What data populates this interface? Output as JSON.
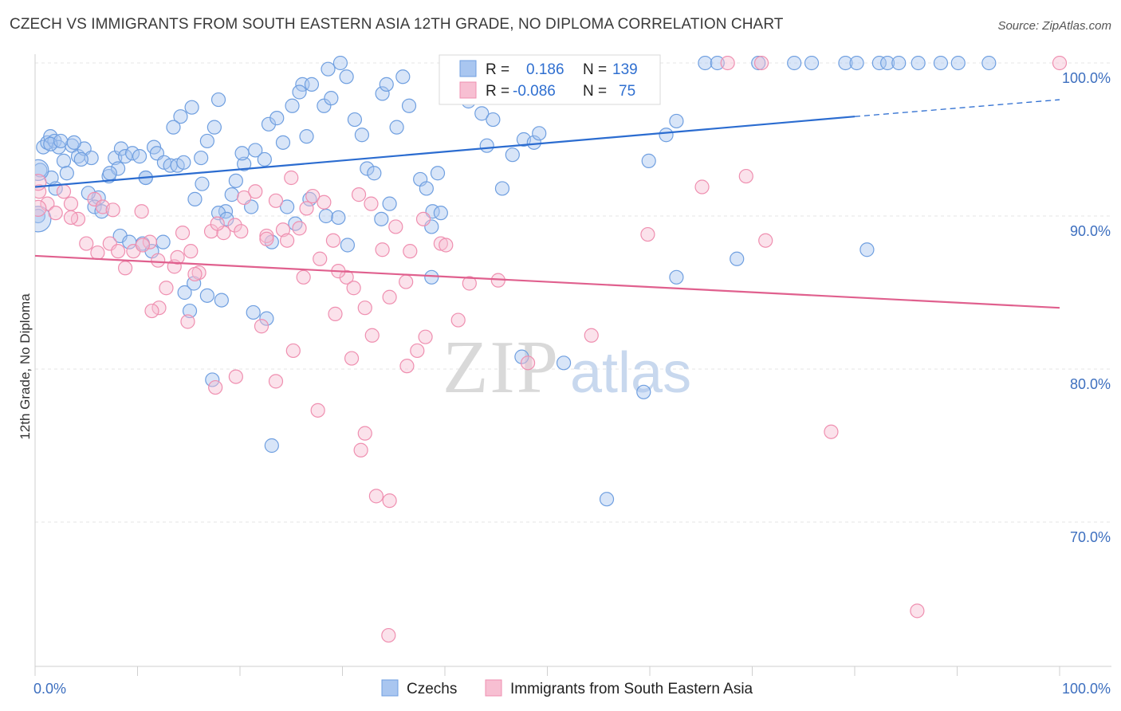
{
  "title": "CZECH VS IMMIGRANTS FROM SOUTH EASTERN ASIA 12TH GRADE, NO DIPLOMA CORRELATION CHART",
  "source": "Source: ZipAtlas.com",
  "watermark": {
    "zip": "ZIP",
    "atlas": "atlas"
  },
  "chart_data": {
    "type": "scatter",
    "xlabel": "",
    "ylabel": "12th Grade, No Diploma",
    "xlim": [
      0,
      100
    ],
    "ylim": [
      60,
      100
    ],
    "x_tick_labels": [
      {
        "value": 0,
        "label": "0.0%"
      },
      {
        "value": 100,
        "label": "100.0%"
      }
    ],
    "y_tick_labels": [
      {
        "value": 100,
        "label": "100.0%"
      },
      {
        "value": 90,
        "label": "90.0%"
      },
      {
        "value": 80,
        "label": "80.0%"
      },
      {
        "value": 70,
        "label": "70.0%"
      }
    ],
    "grid": true,
    "legend_position": "top-center",
    "series": [
      {
        "name": "Czechs",
        "color": "#6f9fe0",
        "fill": "#a9c6f0",
        "line_color": "#2b6cd0",
        "R_label": "R =",
        "R": "0.186",
        "N_label": "N =",
        "N": "139",
        "trend": {
          "x0": 0,
          "y0": 91.9,
          "x1": 80,
          "y1": 96.5,
          "dash_to_x": 100,
          "dash_to_y": 97.6
        },
        "points": [
          [
            0.5,
            93
          ],
          [
            0.3,
            90
          ],
          [
            0.8,
            94.5
          ],
          [
            1.2,
            94.8
          ],
          [
            1.5,
            95.2
          ],
          [
            1.9,
            94.9
          ],
          [
            2.3,
            94.5
          ],
          [
            2.8,
            93.6
          ],
          [
            3.1,
            92.8
          ],
          [
            3.6,
            94.6
          ],
          [
            4.2,
            93.9
          ],
          [
            4.8,
            94.4
          ],
          [
            5.5,
            93.8
          ],
          [
            6.2,
            91.2
          ],
          [
            1.5,
            94.7
          ],
          [
            2.5,
            94.9
          ],
          [
            3.8,
            94.8
          ],
          [
            4.5,
            93.7
          ],
          [
            5.2,
            91.5
          ],
          [
            5.8,
            90.6
          ],
          [
            6.5,
            90.3
          ],
          [
            7.2,
            92.6
          ],
          [
            7.8,
            93.8
          ],
          [
            8.4,
            94.4
          ],
          [
            8.8,
            93.9
          ],
          [
            9.5,
            94.1
          ],
          [
            10.2,
            93.9
          ],
          [
            10.8,
            92.5
          ],
          [
            11.6,
            94.5
          ],
          [
            11.9,
            94.1
          ],
          [
            12.6,
            93.5
          ],
          [
            13.2,
            93.3
          ],
          [
            13.9,
            93.3
          ],
          [
            14.5,
            93.5
          ],
          [
            10.8,
            92.5
          ],
          [
            8.1,
            93.1
          ],
          [
            7.3,
            92.8
          ],
          [
            14.2,
            96.5
          ],
          [
            13.5,
            95.8
          ],
          [
            15.3,
            97.1
          ],
          [
            16.2,
            93.8
          ],
          [
            16.8,
            94.9
          ],
          [
            17.5,
            95.8
          ],
          [
            17.9,
            97.6
          ],
          [
            18.6,
            90.3
          ],
          [
            19.2,
            91.4
          ],
          [
            19.6,
            92.3
          ],
          [
            20.4,
            93.4
          ],
          [
            20.2,
            94.1
          ],
          [
            21.5,
            94.3
          ],
          [
            22.4,
            93.7
          ],
          [
            22.8,
            96.0
          ],
          [
            23.6,
            96.4
          ],
          [
            24.2,
            94.8
          ],
          [
            25.1,
            97.2
          ],
          [
            26.1,
            98.6
          ],
          [
            25.8,
            98.1
          ],
          [
            27.0,
            98.6
          ],
          [
            26.5,
            95.2
          ],
          [
            28.2,
            97.2
          ],
          [
            28.9,
            97.7
          ],
          [
            28.6,
            99.6
          ],
          [
            29.8,
            100
          ],
          [
            30.4,
            99.1
          ],
          [
            31.2,
            96.3
          ],
          [
            31.9,
            95.3
          ],
          [
            32.4,
            93.1
          ],
          [
            33.1,
            92.8
          ],
          [
            33.9,
            98.0
          ],
          [
            34.3,
            98.6
          ],
          [
            35.3,
            95.8
          ],
          [
            35.9,
            99.1
          ],
          [
            36.5,
            97.2
          ],
          [
            37.6,
            92.4
          ],
          [
            38.2,
            91.8
          ],
          [
            38.8,
            90.3
          ],
          [
            39.3,
            92.8
          ],
          [
            40.6,
            100
          ],
          [
            41.6,
            98.2
          ],
          [
            42.3,
            97.5
          ],
          [
            43.6,
            96.7
          ],
          [
            44.1,
            94.6
          ],
          [
            44.7,
            96.3
          ],
          [
            45.6,
            91.8
          ],
          [
            46.6,
            94.0
          ],
          [
            47.7,
            95.0
          ],
          [
            48.7,
            94.8
          ],
          [
            49.2,
            95.4
          ],
          [
            50.6,
            100
          ],
          [
            52.1,
            98.0
          ],
          [
            53.6,
            100
          ],
          [
            56.6,
            100
          ],
          [
            58.3,
            100
          ],
          [
            59.9,
            93.6
          ],
          [
            61.6,
            95.3
          ],
          [
            62.6,
            96.2
          ],
          [
            65.4,
            100
          ],
          [
            66.6,
            100
          ],
          [
            70.6,
            100
          ],
          [
            74.1,
            100
          ],
          [
            75.8,
            100
          ],
          [
            79.1,
            100
          ],
          [
            80.2,
            100
          ],
          [
            82.4,
            100
          ],
          [
            83.2,
            100
          ],
          [
            84.3,
            100
          ],
          [
            86.2,
            100
          ],
          [
            88.4,
            100
          ],
          [
            90.1,
            100
          ],
          [
            93.1,
            100
          ],
          [
            1.6,
            92.5
          ],
          [
            2.0,
            91.8
          ],
          [
            8.3,
            88.7
          ],
          [
            9.2,
            88.3
          ],
          [
            10.5,
            88.2
          ],
          [
            11.4,
            87.7
          ],
          [
            12.5,
            88.3
          ],
          [
            15.6,
            91.1
          ],
          [
            16.3,
            92.1
          ],
          [
            17.9,
            90.2
          ],
          [
            18.7,
            89.8
          ],
          [
            21.1,
            90.6
          ],
          [
            23.1,
            88.3
          ],
          [
            24.6,
            90.6
          ],
          [
            25.4,
            89.5
          ],
          [
            26.8,
            91.1
          ],
          [
            28.4,
            90.0
          ],
          [
            29.6,
            89.9
          ],
          [
            30.5,
            88.1
          ],
          [
            33.8,
            89.8
          ],
          [
            34.6,
            90.8
          ],
          [
            38.7,
            89.3
          ],
          [
            39.6,
            90.2
          ],
          [
            14.6,
            85.0
          ],
          [
            15.5,
            85.6
          ],
          [
            16.8,
            84.8
          ],
          [
            18.2,
            84.5
          ],
          [
            21.3,
            83.7
          ],
          [
            22.6,
            83.3
          ],
          [
            15.1,
            83.8
          ],
          [
            38.7,
            86.0
          ],
          [
            47.5,
            80.8
          ],
          [
            59.4,
            78.5
          ],
          [
            23.1,
            75.0
          ],
          [
            55.8,
            71.5
          ],
          [
            62.6,
            86.0
          ],
          [
            68.5,
            87.2
          ],
          [
            81.2,
            87.8
          ],
          [
            51.6,
            80.4
          ],
          [
            17.3,
            79.3
          ]
        ],
        "big_points": [
          [
            0.3,
            93.0,
            13
          ],
          [
            0.3,
            89.8,
            16
          ]
        ]
      },
      {
        "name": "Immigrants from South Eastern Asia",
        "color": "#ef8fb0",
        "fill": "#f7bfd2",
        "line_color": "#e0608e",
        "R_label": "R =",
        "R": "-0.086",
        "N_label": "N =",
        "N": "75",
        "trend": {
          "x0": 0,
          "y0": 87.4,
          "x1": 100,
          "y1": 84.0
        },
        "points": [
          [
            0.4,
            91.6
          ],
          [
            1.2,
            90.8
          ],
          [
            2.0,
            90.2
          ],
          [
            2.8,
            91.6
          ],
          [
            3.5,
            90.8
          ],
          [
            4.2,
            89.8
          ],
          [
            5.0,
            88.2
          ],
          [
            5.8,
            91.1
          ],
          [
            6.6,
            90.6
          ],
          [
            7.3,
            88.2
          ],
          [
            8.1,
            87.7
          ],
          [
            8.8,
            86.6
          ],
          [
            9.6,
            87.7
          ],
          [
            10.4,
            90.3
          ],
          [
            11.2,
            88.3
          ],
          [
            12.0,
            87.1
          ],
          [
            12.8,
            85.3
          ],
          [
            13.6,
            86.7
          ],
          [
            14.4,
            88.9
          ],
          [
            15.2,
            87.7
          ],
          [
            16.0,
            86.3
          ],
          [
            17.2,
            89.0
          ],
          [
            18.4,
            88.9
          ],
          [
            19.5,
            89.4
          ],
          [
            20.4,
            91.2
          ],
          [
            21.5,
            91.6
          ],
          [
            22.6,
            88.7
          ],
          [
            23.5,
            91.0
          ],
          [
            24.2,
            89.1
          ],
          [
            25.0,
            92.5
          ],
          [
            25.8,
            89.2
          ],
          [
            26.5,
            90.5
          ],
          [
            27.1,
            91.3
          ],
          [
            28.2,
            90.9
          ],
          [
            29.1,
            88.4
          ],
          [
            30.4,
            86.0
          ],
          [
            31.6,
            91.4
          ],
          [
            32.8,
            90.8
          ],
          [
            33.9,
            87.8
          ],
          [
            35.2,
            89.3
          ],
          [
            36.6,
            87.7
          ],
          [
            37.9,
            89.8
          ],
          [
            3.5,
            89.9
          ],
          [
            6.1,
            87.6
          ],
          [
            7.6,
            90.4
          ],
          [
            10.5,
            88.1
          ],
          [
            12.1,
            84.0
          ],
          [
            13.9,
            87.3
          ],
          [
            15.6,
            86.2
          ],
          [
            17.8,
            89.5
          ],
          [
            20.1,
            89.0
          ],
          [
            22.6,
            88.5
          ],
          [
            24.6,
            88.4
          ],
          [
            26.2,
            86.0
          ],
          [
            27.8,
            87.2
          ],
          [
            29.6,
            86.4
          ],
          [
            31.1,
            85.3
          ],
          [
            32.2,
            84.0
          ],
          [
            32.9,
            82.2
          ],
          [
            34.6,
            84.7
          ],
          [
            36.2,
            85.7
          ],
          [
            37.3,
            81.2
          ],
          [
            38.1,
            82.1
          ],
          [
            39.6,
            88.2
          ],
          [
            41.3,
            83.2
          ],
          [
            11.4,
            83.8
          ],
          [
            14.9,
            83.1
          ],
          [
            17.6,
            78.8
          ],
          [
            19.6,
            79.5
          ],
          [
            22.1,
            82.8
          ],
          [
            23.5,
            79.2
          ],
          [
            25.2,
            81.2
          ],
          [
            27.6,
            77.3
          ],
          [
            29.3,
            83.6
          ],
          [
            30.9,
            80.7
          ],
          [
            31.8,
            74.7
          ],
          [
            32.2,
            75.8
          ],
          [
            33.3,
            71.7
          ],
          [
            34.6,
            71.4
          ],
          [
            36.3,
            80.2
          ],
          [
            40.1,
            88.1
          ],
          [
            42.4,
            85.6
          ],
          [
            45.2,
            85.8
          ],
          [
            48.1,
            80.4
          ],
          [
            54.3,
            82.2
          ],
          [
            59.8,
            88.8
          ],
          [
            65.1,
            91.9
          ],
          [
            69.4,
            92.6
          ],
          [
            71.3,
            88.4
          ],
          [
            77.7,
            75.9
          ],
          [
            86.1,
            64.2
          ],
          [
            34.5,
            62.6
          ],
          [
            67.6,
            100
          ],
          [
            70.9,
            100
          ],
          [
            100,
            100
          ]
        ],
        "big_points": [
          [
            0.3,
            92.2,
            10
          ],
          [
            0.3,
            90.5,
            10
          ]
        ]
      }
    ]
  }
}
